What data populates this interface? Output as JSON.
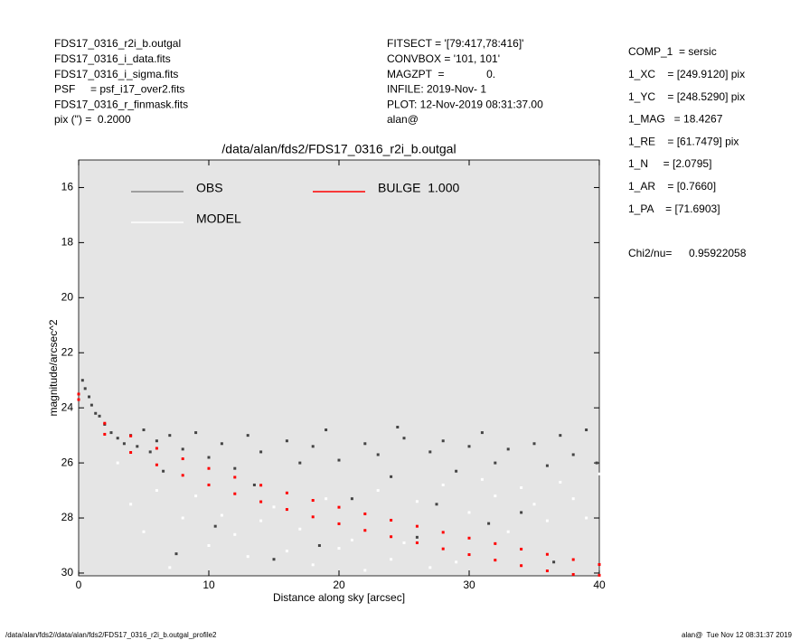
{
  "header": {
    "left": [
      "FDS17_0316_r2i_b.outgal",
      "FDS17_0316_i_data.fits",
      "FDS17_0316_i_sigma.fits",
      "PSF     = psf_i17_over2.fits",
      "FDS17_0316_r_finmask.fits",
      "pix (\") =  0.2000"
    ],
    "middle": [
      "FITSECT = '[79:417,78:416]'",
      "CONVBOX = '101, 101'",
      "MAGZPT  =              0.",
      "INFILE: 2019-Nov- 1",
      "PLOT: 12-Nov-2019 08:31:37.00",
      "alan@"
    ],
    "params": [
      "COMP_1  = sersic",
      "1_XC    = [249.9120] pix",
      "1_YC    = [248.5290] pix",
      "1_MAG   = 18.4267",
      "1_RE    = [61.7479] pix",
      "1_N     = [2.0795]",
      "1_AR    = [0.7660]",
      "1_PA    = [71.6903]"
    ],
    "chi2_label": "Chi2/nu=",
    "chi2_value": "0.95922058"
  },
  "footer": {
    "left": "/data/alan/fds2//data/alan/fds2/FDS17_0316_r2i_b.outgal_profile2",
    "right": "alan@  Tue Nov 12 08:31:37 2019"
  },
  "chart_data": {
    "type": "scatter",
    "title": "/data/alan/fds2/FDS17_0316_r2i_b.outgal",
    "x_label": "Distance along sky [arcsec]",
    "y_label": "magnitude/arcsec^2",
    "xlim": [
      0,
      40
    ],
    "xticks": [
      0,
      10,
      20,
      30,
      40
    ],
    "ylim": [
      30.1,
      15
    ],
    "yticks": [
      16,
      18,
      20,
      22,
      24,
      26,
      28,
      30
    ],
    "background": "#e5e5e5",
    "series": [
      {
        "name": "OBS",
        "color": "#444444",
        "legend_color": "#888888",
        "x": [
          0.3,
          0.5,
          0.8,
          1,
          1.3,
          1.6,
          2,
          2.5,
          3,
          3.5,
          4,
          4.5,
          5,
          5.5,
          6,
          7,
          7.5,
          8,
          9,
          10,
          11,
          12,
          13,
          14,
          15,
          16,
          17,
          18,
          19,
          20,
          21,
          22,
          23,
          24,
          25,
          26,
          27,
          28,
          29,
          30,
          31,
          32,
          33,
          34,
          35,
          36,
          37,
          38,
          39,
          39.8,
          10.5,
          18.5,
          27.5,
          36.5,
          6.5,
          13.5,
          24.5,
          31.5
        ],
        "values": [
          23.0,
          23.3,
          23.6,
          23.9,
          24.2,
          24.3,
          24.6,
          24.9,
          25.1,
          25.3,
          25.0,
          25.4,
          24.8,
          25.6,
          25.2,
          25.0,
          29.3,
          25.5,
          24.9,
          25.8,
          25.3,
          26.2,
          25.0,
          25.6,
          29.5,
          25.2,
          26.0,
          25.4,
          24.8,
          25.9,
          27.3,
          25.3,
          25.7,
          26.5,
          25.1,
          28.7,
          25.6,
          25.2,
          26.3,
          25.4,
          24.9,
          26.0,
          25.5,
          27.8,
          25.3,
          26.1,
          25.0,
          25.7,
          24.8,
          26.0,
          28.3,
          29.0,
          27.5,
          29.6,
          26.3,
          26.8,
          24.7,
          28.2
        ]
      },
      {
        "name": "MODEL",
        "color": "#ffffff",
        "legend_color": "#ffffff",
        "x": [
          3,
          4,
          5,
          6,
          7,
          8,
          9,
          10,
          11,
          12,
          13,
          14,
          15,
          16,
          17,
          18,
          19,
          20,
          21,
          22,
          23,
          24,
          25,
          26,
          27,
          28,
          29,
          30,
          31,
          32,
          33,
          34,
          35,
          36,
          37,
          38,
          39,
          40
        ],
        "values": [
          26.0,
          27.5,
          28.5,
          27.0,
          29.8,
          28.0,
          27.2,
          29.0,
          27.9,
          28.6,
          29.4,
          28.1,
          27.6,
          29.2,
          28.4,
          29.7,
          27.3,
          29.1,
          28.8,
          29.9,
          27.0,
          29.5,
          28.9,
          27.4,
          29.8,
          26.8,
          29.6,
          27.8,
          26.6,
          27.2,
          28.5,
          26.9,
          27.5,
          28.1,
          26.7,
          27.3,
          28.0,
          26.4
        ]
      },
      {
        "name": "BULGE  1.000",
        "color": "#ff0000",
        "legend_color": "#ff0000",
        "x": [
          0,
          2,
          4,
          6,
          8,
          10,
          12,
          14,
          16,
          18,
          20,
          22,
          24,
          26,
          28,
          30,
          32,
          34,
          36,
          38,
          40,
          0,
          2,
          4,
          6,
          8,
          10,
          12,
          14,
          16,
          18,
          20,
          22,
          24,
          26,
          28,
          30,
          32,
          34,
          36,
          38,
          40
        ],
        "values": [
          23.5,
          24.56,
          25.02,
          25.47,
          25.85,
          26.2,
          26.52,
          26.81,
          27.09,
          27.36,
          27.61,
          27.85,
          28.08,
          28.3,
          28.52,
          28.73,
          28.93,
          29.13,
          29.32,
          29.51,
          29.69,
          23.7,
          24.96,
          25.62,
          26.07,
          26.45,
          26.8,
          27.12,
          27.41,
          27.69,
          27.96,
          28.21,
          28.45,
          28.68,
          28.9,
          29.12,
          29.33,
          29.53,
          29.73,
          29.92,
          30.05,
          30.08
        ]
      }
    ]
  }
}
